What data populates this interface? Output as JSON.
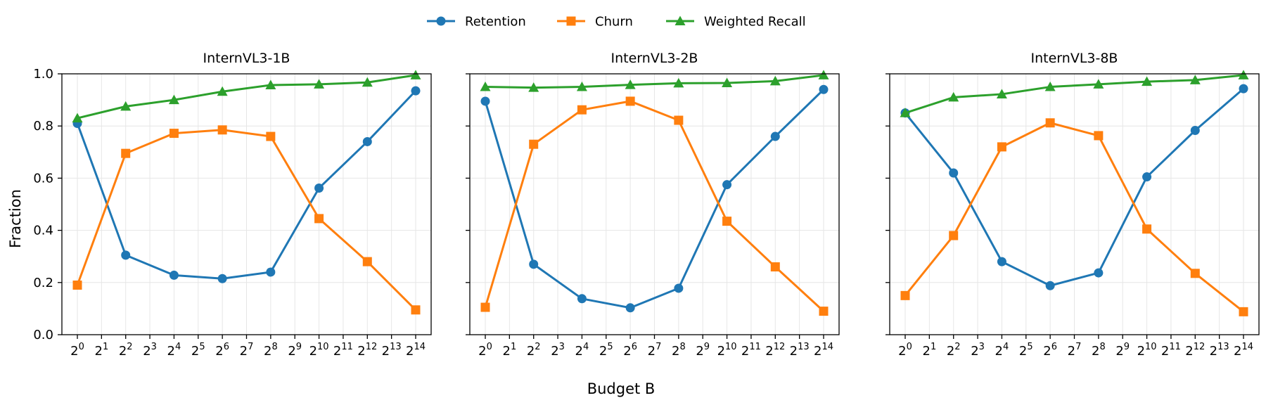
{
  "legend": {
    "placement": "top-center",
    "entries": [
      {
        "label": "Retention",
        "color": "#1f77b4",
        "marker": "circle"
      },
      {
        "label": "Churn",
        "color": "#ff7f0e",
        "marker": "square"
      },
      {
        "label": "Weighted Recall",
        "color": "#2ca02c",
        "marker": "triangle"
      }
    ]
  },
  "shared_xlabel": "Budget B",
  "shared_ylabel": "Fraction",
  "chart_data": [
    {
      "type": "line",
      "title": "InternVL3-1B",
      "x_scale": "log2",
      "x": [
        1,
        4,
        16,
        64,
        256,
        1024,
        4096,
        16384
      ],
      "x_ticks": [
        0,
        1,
        2,
        3,
        4,
        5,
        6,
        7,
        8,
        9,
        10,
        11,
        12,
        13,
        14
      ],
      "ylim": [
        0,
        1
      ],
      "y_ticks": [
        "0.0",
        "0.2",
        "0.4",
        "0.6",
        "0.8",
        "1.0"
      ],
      "grid": true,
      "series": [
        {
          "name": "Retention",
          "values": [
            0.81,
            0.305,
            0.228,
            0.215,
            0.24,
            0.562,
            0.74,
            0.935
          ]
        },
        {
          "name": "Churn",
          "values": [
            0.19,
            0.695,
            0.772,
            0.785,
            0.76,
            0.445,
            0.28,
            0.095
          ]
        },
        {
          "name": "Weighted Recall",
          "values": [
            0.83,
            0.875,
            0.9,
            0.932,
            0.957,
            0.96,
            0.967,
            0.995
          ]
        }
      ]
    },
    {
      "type": "line",
      "title": "InternVL3-2B",
      "x_scale": "log2",
      "x": [
        1,
        4,
        16,
        64,
        256,
        1024,
        4096,
        16384
      ],
      "x_ticks": [
        0,
        1,
        2,
        3,
        4,
        5,
        6,
        7,
        8,
        9,
        10,
        11,
        12,
        13,
        14
      ],
      "ylim": [
        0,
        1
      ],
      "y_ticks": [
        "0.0",
        "0.2",
        "0.4",
        "0.6",
        "0.8",
        "1.0"
      ],
      "grid": true,
      "series": [
        {
          "name": "Retention",
          "values": [
            0.895,
            0.27,
            0.138,
            0.103,
            0.178,
            0.575,
            0.76,
            0.94
          ]
        },
        {
          "name": "Churn",
          "values": [
            0.105,
            0.73,
            0.862,
            0.895,
            0.822,
            0.435,
            0.26,
            0.09
          ]
        },
        {
          "name": "Weighted Recall",
          "values": [
            0.95,
            0.947,
            0.95,
            0.958,
            0.964,
            0.965,
            0.972,
            0.995
          ]
        }
      ]
    },
    {
      "type": "line",
      "title": "InternVL3-8B",
      "x_scale": "log2",
      "x": [
        1,
        4,
        16,
        64,
        256,
        1024,
        4096,
        16384
      ],
      "x_ticks": [
        0,
        1,
        2,
        3,
        4,
        5,
        6,
        7,
        8,
        9,
        10,
        11,
        12,
        13,
        14
      ],
      "ylim": [
        0,
        1
      ],
      "y_ticks": [
        "0.0",
        "0.2",
        "0.4",
        "0.6",
        "0.8",
        "1.0"
      ],
      "grid": true,
      "series": [
        {
          "name": "Retention",
          "values": [
            0.85,
            0.62,
            0.28,
            0.188,
            0.237,
            0.605,
            0.783,
            0.943
          ]
        },
        {
          "name": "Churn",
          "values": [
            0.15,
            0.38,
            0.72,
            0.812,
            0.763,
            0.405,
            0.235,
            0.088
          ]
        },
        {
          "name": "Weighted Recall",
          "values": [
            0.85,
            0.91,
            0.922,
            0.95,
            0.96,
            0.97,
            0.976,
            0.995
          ]
        }
      ]
    }
  ]
}
